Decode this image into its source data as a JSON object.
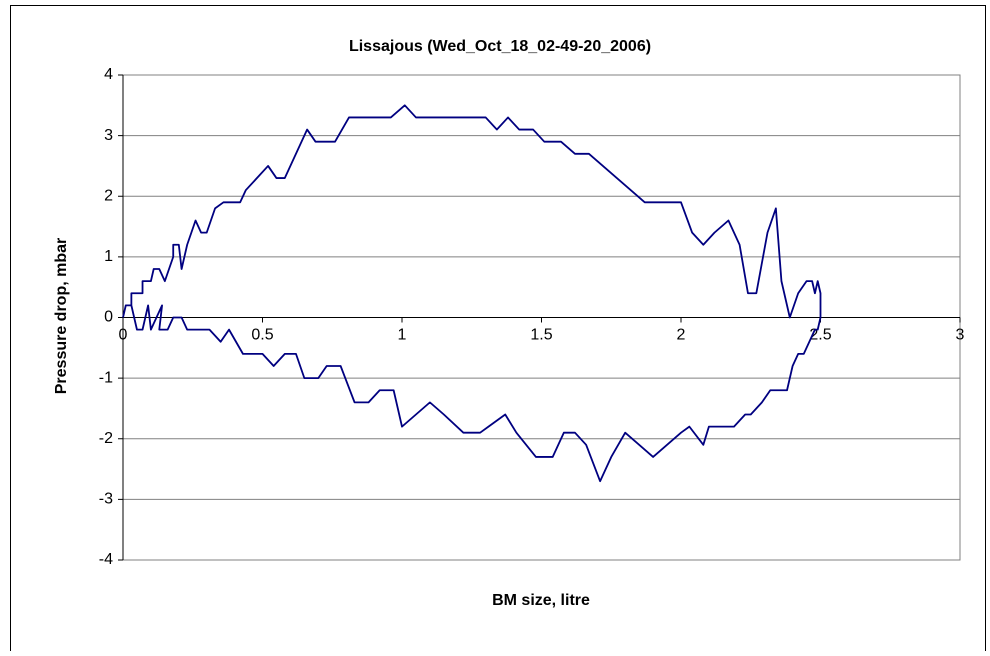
{
  "chart_data": {
    "type": "line",
    "title": "Lissajous (Wed_Oct_18_02-49-20_2006)",
    "x_label": "BM size, litre",
    "y_label": "Pressure drop, mbar",
    "color": "#000080",
    "grid": true,
    "xlim": [
      0,
      3
    ],
    "ylim": [
      -4,
      4
    ],
    "xticks": [
      0,
      0.5,
      1,
      1.5,
      2,
      2.5,
      3
    ],
    "yticks": [
      -4,
      -3,
      -2,
      -1,
      0,
      1,
      2,
      3,
      4
    ],
    "x": [
      0,
      0.01,
      0.03,
      0.03,
      0.07,
      0.07,
      0.1,
      0.11,
      0.13,
      0.15,
      0.18,
      0.18,
      0.2,
      0.21,
      0.23,
      0.26,
      0.28,
      0.3,
      0.33,
      0.36,
      0.42,
      0.44,
      0.52,
      0.55,
      0.58,
      0.62,
      0.66,
      0.69,
      0.76,
      0.81,
      0.96,
      1.01,
      1.05,
      1.3,
      1.34,
      1.38,
      1.42,
      1.47,
      1.51,
      1.57,
      1.62,
      1.67,
      1.87,
      2.0,
      2.04,
      2.08,
      2.12,
      2.17,
      2.21,
      2.24,
      2.27,
      2.31,
      2.34,
      2.36,
      2.39,
      2.42,
      2.45,
      2.47,
      2.48,
      2.49,
      2.5,
      2.5,
      2.49,
      2.48,
      2.46,
      2.44,
      2.42,
      2.4,
      2.38,
      2.32,
      2.29,
      2.25,
      2.23,
      2.19,
      2.1,
      2.08,
      2.03,
      2.0,
      1.95,
      1.9,
      1.8,
      1.75,
      1.71,
      1.66,
      1.62,
      1.58,
      1.54,
      1.48,
      1.41,
      1.37,
      1.31,
      1.28,
      1.22,
      1.15,
      1.1,
      1.0,
      0.97,
      0.92,
      0.88,
      0.83,
      0.78,
      0.73,
      0.7,
      0.65,
      0.62,
      0.58,
      0.54,
      0.5,
      0.43,
      0.38,
      0.35,
      0.31,
      0.23,
      0.21,
      0.18,
      0.16,
      0.13,
      0.14,
      0.1,
      0.09,
      0.07,
      0.05,
      0.03,
      0.01,
      0
    ],
    "values": [
      0,
      0.2,
      0.2,
      0.4,
      0.4,
      0.6,
      0.6,
      0.8,
      0.8,
      0.6,
      1.0,
      1.2,
      1.2,
      0.8,
      1.2,
      1.6,
      1.4,
      1.4,
      1.8,
      1.9,
      1.9,
      2.1,
      2.5,
      2.3,
      2.3,
      2.7,
      3.1,
      2.9,
      2.9,
      3.3,
      3.3,
      3.5,
      3.3,
      3.3,
      3.1,
      3.3,
      3.1,
      3.1,
      2.9,
      2.9,
      2.7,
      2.7,
      1.9,
      1.9,
      1.4,
      1.2,
      1.4,
      1.6,
      1.2,
      0.4,
      0.4,
      1.4,
      1.8,
      0.6,
      0,
      0.4,
      0.6,
      0.6,
      0.4,
      0.6,
      0.4,
      0,
      -0.2,
      -0.2,
      -0.4,
      -0.6,
      -0.6,
      -0.8,
      -1.2,
      -1.2,
      -1.4,
      -1.6,
      -1.6,
      -1.8,
      -1.8,
      -2.1,
      -1.8,
      -1.9,
      -2.1,
      -2.3,
      -1.9,
      -2.3,
      -2.7,
      -2.1,
      -1.9,
      -1.9,
      -2.3,
      -2.3,
      -1.9,
      -1.6,
      -1.8,
      -1.9,
      -1.9,
      -1.6,
      -1.4,
      -1.8,
      -1.2,
      -1.2,
      -1.4,
      -1.4,
      -0.8,
      -0.8,
      -1.0,
      -1.0,
      -0.6,
      -0.6,
      -0.8,
      -0.6,
      -0.6,
      -0.2,
      -0.4,
      -0.2,
      -0.2,
      0,
      0,
      -0.2,
      -0.2,
      0.2,
      -0.2,
      0.2,
      -0.2,
      -0.2,
      0.2,
      0.2,
      0
    ]
  }
}
